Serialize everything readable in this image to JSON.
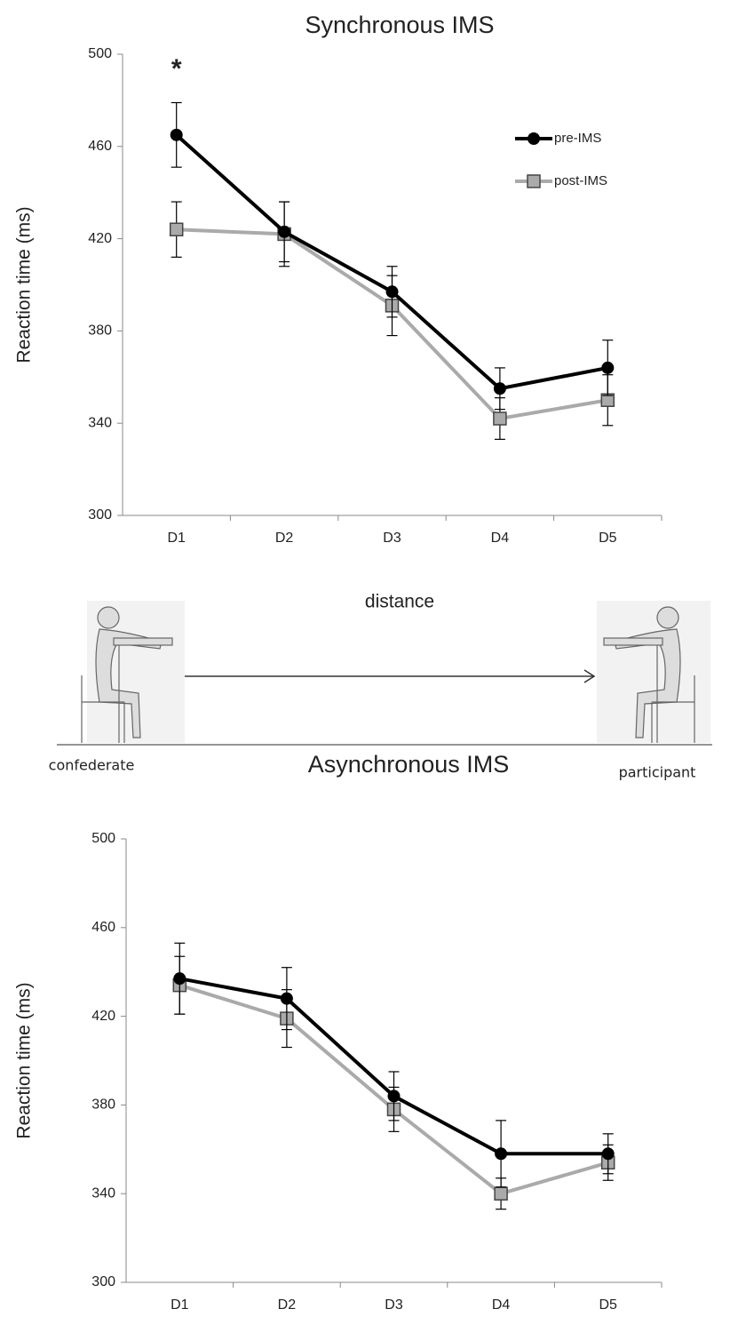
{
  "chart_data": [
    {
      "type": "line",
      "title": "Synchronous IMS",
      "y_label": "Reaction time (ms)",
      "categories": [
        "D1",
        "D2",
        "D3",
        "D4",
        "D5"
      ],
      "series": [
        {
          "name": "pre-IMS",
          "color": "#000000",
          "marker": "circle",
          "values": [
            465,
            423,
            397,
            355,
            364
          ],
          "errors": [
            14,
            13,
            11,
            9,
            12
          ]
        },
        {
          "name": "post-IMS",
          "color": "#aaaaaa",
          "marker": "square",
          "values": [
            424,
            422,
            391,
            342,
            350
          ],
          "errors": [
            12,
            14,
            13,
            9,
            11
          ]
        }
      ],
      "ylim": [
        300,
        500
      ],
      "yticks": [
        300,
        340,
        380,
        420,
        460,
        500
      ],
      "legend": "upper right",
      "annotations": [
        {
          "text": "*"
        }
      ]
    },
    {
      "type": "line",
      "title": "Asynchronous IMS",
      "y_label": "Reaction time (ms)",
      "categories": [
        "D1",
        "D2",
        "D3",
        "D4",
        "D5"
      ],
      "series": [
        {
          "color": "#000000",
          "marker": "circle",
          "values": [
            437,
            428,
            384,
            358,
            358
          ],
          "errors": [
            16,
            14,
            11,
            15,
            9
          ]
        },
        {
          "color": "#aaaaaa",
          "marker": "square",
          "values": [
            434,
            419,
            378,
            340,
            354
          ],
          "errors": [
            13,
            13,
            10,
            7,
            8
          ]
        }
      ],
      "ylim": [
        300,
        500
      ],
      "yticks": [
        300,
        340,
        380,
        420,
        460,
        500
      ]
    }
  ],
  "diagram": {
    "distance_label": "distance",
    "left_label": "confederate",
    "right_label": "participant"
  }
}
